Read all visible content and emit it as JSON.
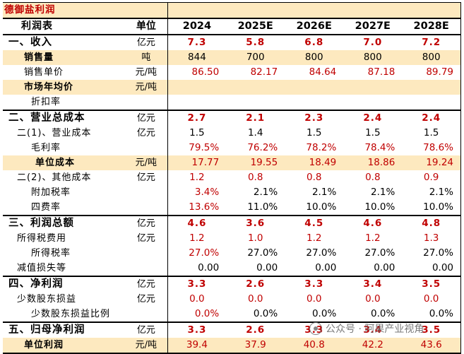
{
  "banner": {
    "title": "德御盐利润"
  },
  "header": {
    "name": "利润表",
    "unit": "单位",
    "years": [
      "2024",
      "2025E",
      "2026E",
      "2027E",
      "2028E"
    ]
  },
  "rows": [
    {
      "name": "一、收入",
      "unit": "亿元",
      "values": [
        "7.3",
        "5.8",
        "6.8",
        "7.0",
        "7.2"
      ]
    },
    {
      "name": "销售量",
      "unit": "吨",
      "values": [
        "844",
        "700",
        "800",
        "800",
        "800"
      ]
    },
    {
      "name": "销售单价",
      "unit": "元/吨",
      "values": [
        "86.50",
        "82.17",
        "84.64",
        "87.18",
        "89.79"
      ]
    },
    {
      "name": "市场年均价",
      "unit": "元/吨",
      "values": [
        "",
        "",
        "",
        "",
        ""
      ]
    },
    {
      "name": "折扣率",
      "unit": "",
      "values": [
        "",
        "",
        "",
        "",
        ""
      ]
    },
    {
      "name": "二、营业总成本",
      "unit": "亿元",
      "values": [
        "2.7",
        "2.1",
        "2.3",
        "2.4",
        "2.4"
      ]
    },
    {
      "name": "二(1)、营业成本",
      "unit": "亿元",
      "values": [
        "1.5",
        "1.4",
        "1.5",
        "1.5",
        "1.5"
      ]
    },
    {
      "name": "毛利率",
      "unit": "",
      "values": [
        "79.5%",
        "76.2%",
        "78.2%",
        "78.4%",
        "78.6%"
      ]
    },
    {
      "name": "单位成本",
      "unit": "元/吨",
      "values": [
        "17.77",
        "19.55",
        "18.49",
        "18.86",
        "19.24"
      ]
    },
    {
      "name": "二(2)、其他成本",
      "unit": "亿元",
      "values": [
        "1.2",
        "0.8",
        "0.8",
        "0.8",
        "0.9"
      ]
    },
    {
      "name": "附加税率",
      "unit": "",
      "values": [
        "3.4%",
        "2.1%",
        "2.1%",
        "2.1%",
        "2.1%"
      ]
    },
    {
      "name": "四费率",
      "unit": "",
      "values": [
        "13.6%",
        "11.0%",
        "10.0%",
        "10.0%",
        "10.0%"
      ]
    },
    {
      "name": "三、利润总额",
      "unit": "亿元",
      "values": [
        "4.6",
        "3.6",
        "4.5",
        "4.6",
        "4.8"
      ]
    },
    {
      "name": "所得税费用",
      "unit": "亿元",
      "values": [
        "1.2",
        "1.0",
        "1.2",
        "1.2",
        "1.3"
      ]
    },
    {
      "name": "所得税率",
      "unit": "",
      "values": [
        "27.0%",
        "27.0%",
        "27.0%",
        "27.0%",
        "27.0%"
      ]
    },
    {
      "name": "减值损失等",
      "unit": "",
      "values": [
        "0.00",
        "0.00",
        "0.00",
        "0.00",
        "0.00"
      ]
    },
    {
      "name": "四、净利润",
      "unit": "亿元",
      "values": [
        "3.3",
        "2.6",
        "3.3",
        "3.4",
        "3.5"
      ]
    },
    {
      "name": "少数股东损益",
      "unit": "亿元",
      "values": [
        "0.0",
        "0.0",
        "0.0",
        "0.0",
        "0.0"
      ]
    },
    {
      "name": "少数股东损益比例",
      "unit": "",
      "values": [
        "0.0%",
        "0.0%",
        "0.0%",
        "0.0%",
        "0.0%"
      ]
    },
    {
      "name": "五、归母净利润",
      "unit": "亿元",
      "values": [
        "3.3",
        "2.6",
        "3.3",
        "3.4",
        "3.5"
      ]
    },
    {
      "name": "单位利润",
      "unit": "元/吨",
      "values": [
        "39.4",
        "37.9",
        "40.8",
        "42.2",
        "43.6"
      ]
    }
  ],
  "watermark": {
    "text": "公众号 · 阿果产业视角",
    "icon": "wechat-icon"
  },
  "colors": {
    "highlight": "#fde9bf",
    "red": "#c00000"
  }
}
